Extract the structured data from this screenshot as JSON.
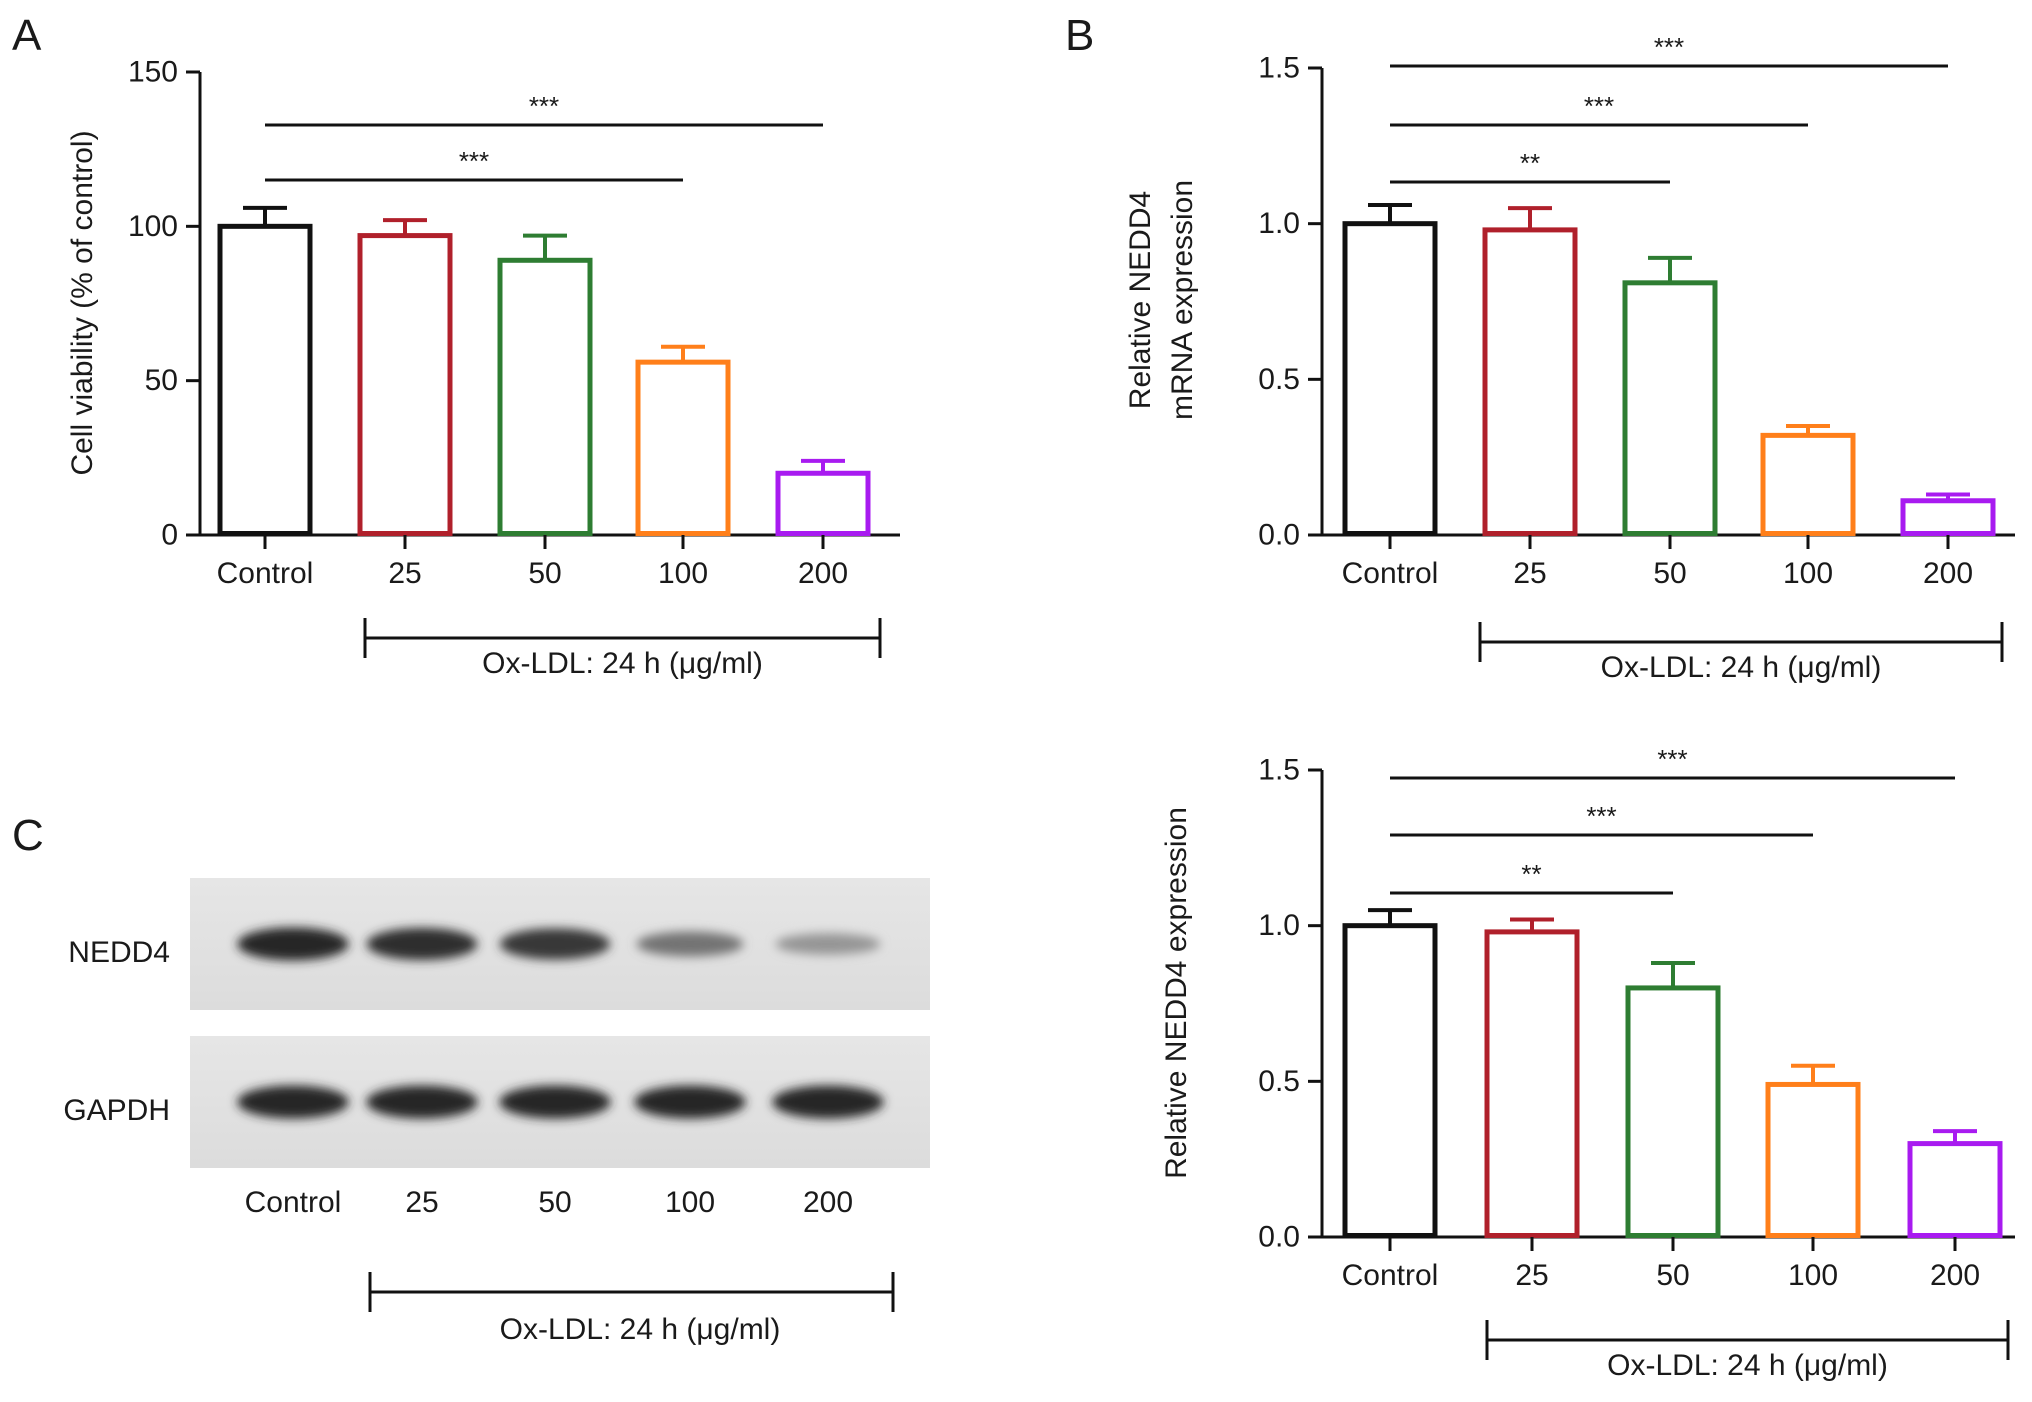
{
  "panels": {
    "A": "A",
    "B": "B",
    "C": "C"
  },
  "chart_data": [
    {
      "id": "A",
      "type": "bar",
      "categories": [
        "Control",
        "25",
        "50",
        "100",
        "200"
      ],
      "values": [
        100,
        97,
        89,
        56,
        20
      ],
      "errors": [
        6,
        5,
        8,
        5,
        4
      ],
      "colors": [
        "#111111",
        "#b0202b",
        "#2e7d32",
        "#ff7f1a",
        "#a81bf0"
      ],
      "ylabel": "Cell viability (% of control)",
      "ylim": [
        0,
        150
      ],
      "yticks": [
        "0",
        "50",
        "100",
        "150"
      ],
      "group_label": "Ox-LDL: 24 h (μg/ml)",
      "significance": [
        {
          "from": "Control",
          "to": "100",
          "label": "***"
        },
        {
          "from": "Control",
          "to": "200",
          "label": "***"
        }
      ]
    },
    {
      "id": "B-top",
      "type": "bar",
      "categories": [
        "Control",
        "25",
        "50",
        "100",
        "200"
      ],
      "values": [
        1.0,
        0.98,
        0.81,
        0.32,
        0.11
      ],
      "errors": [
        0.06,
        0.07,
        0.08,
        0.03,
        0.02
      ],
      "colors": [
        "#111111",
        "#b0202b",
        "#2e7d32",
        "#ff7f1a",
        "#a81bf0"
      ],
      "ylabel": [
        "Relative NEDD4",
        "mRNA expression"
      ],
      "ylim": [
        0,
        1.5
      ],
      "yticks": [
        "0.0",
        "0.5",
        "1.0",
        "1.5"
      ],
      "group_label": "Ox-LDL: 24 h (μg/ml)",
      "significance": [
        {
          "from": "Control",
          "to": "50",
          "label": "**"
        },
        {
          "from": "Control",
          "to": "100",
          "label": "***"
        },
        {
          "from": "Control",
          "to": "200",
          "label": "***"
        }
      ]
    },
    {
      "id": "B-bottom",
      "type": "bar",
      "categories": [
        "Control",
        "25",
        "50",
        "100",
        "200"
      ],
      "values": [
        1.0,
        0.98,
        0.8,
        0.49,
        0.3
      ],
      "errors": [
        0.05,
        0.04,
        0.08,
        0.06,
        0.04
      ],
      "colors": [
        "#111111",
        "#b0202b",
        "#2e7d32",
        "#ff7f1a",
        "#a81bf0"
      ],
      "ylabel": [
        "Relative NEDD4 expression"
      ],
      "ylim": [
        0,
        1.5
      ],
      "yticks": [
        "0.0",
        "0.5",
        "1.0",
        "1.5"
      ],
      "group_label": "Ox-LDL: 24 h (μg/ml)",
      "significance": [
        {
          "from": "Control",
          "to": "50",
          "label": "**"
        },
        {
          "from": "Control",
          "to": "100",
          "label": "***"
        },
        {
          "from": "Control",
          "to": "200",
          "label": "***"
        }
      ]
    }
  ],
  "blot": {
    "rows": [
      {
        "label": "NEDD4",
        "intensities": [
          0.95,
          0.9,
          0.85,
          0.5,
          0.3
        ]
      },
      {
        "label": "GAPDH",
        "intensities": [
          0.95,
          0.95,
          0.95,
          0.95,
          0.95
        ]
      }
    ],
    "lanes": [
      "Control",
      "25",
      "50",
      "100",
      "200"
    ],
    "group_label": "Ox-LDL: 24 h (μg/ml)"
  }
}
